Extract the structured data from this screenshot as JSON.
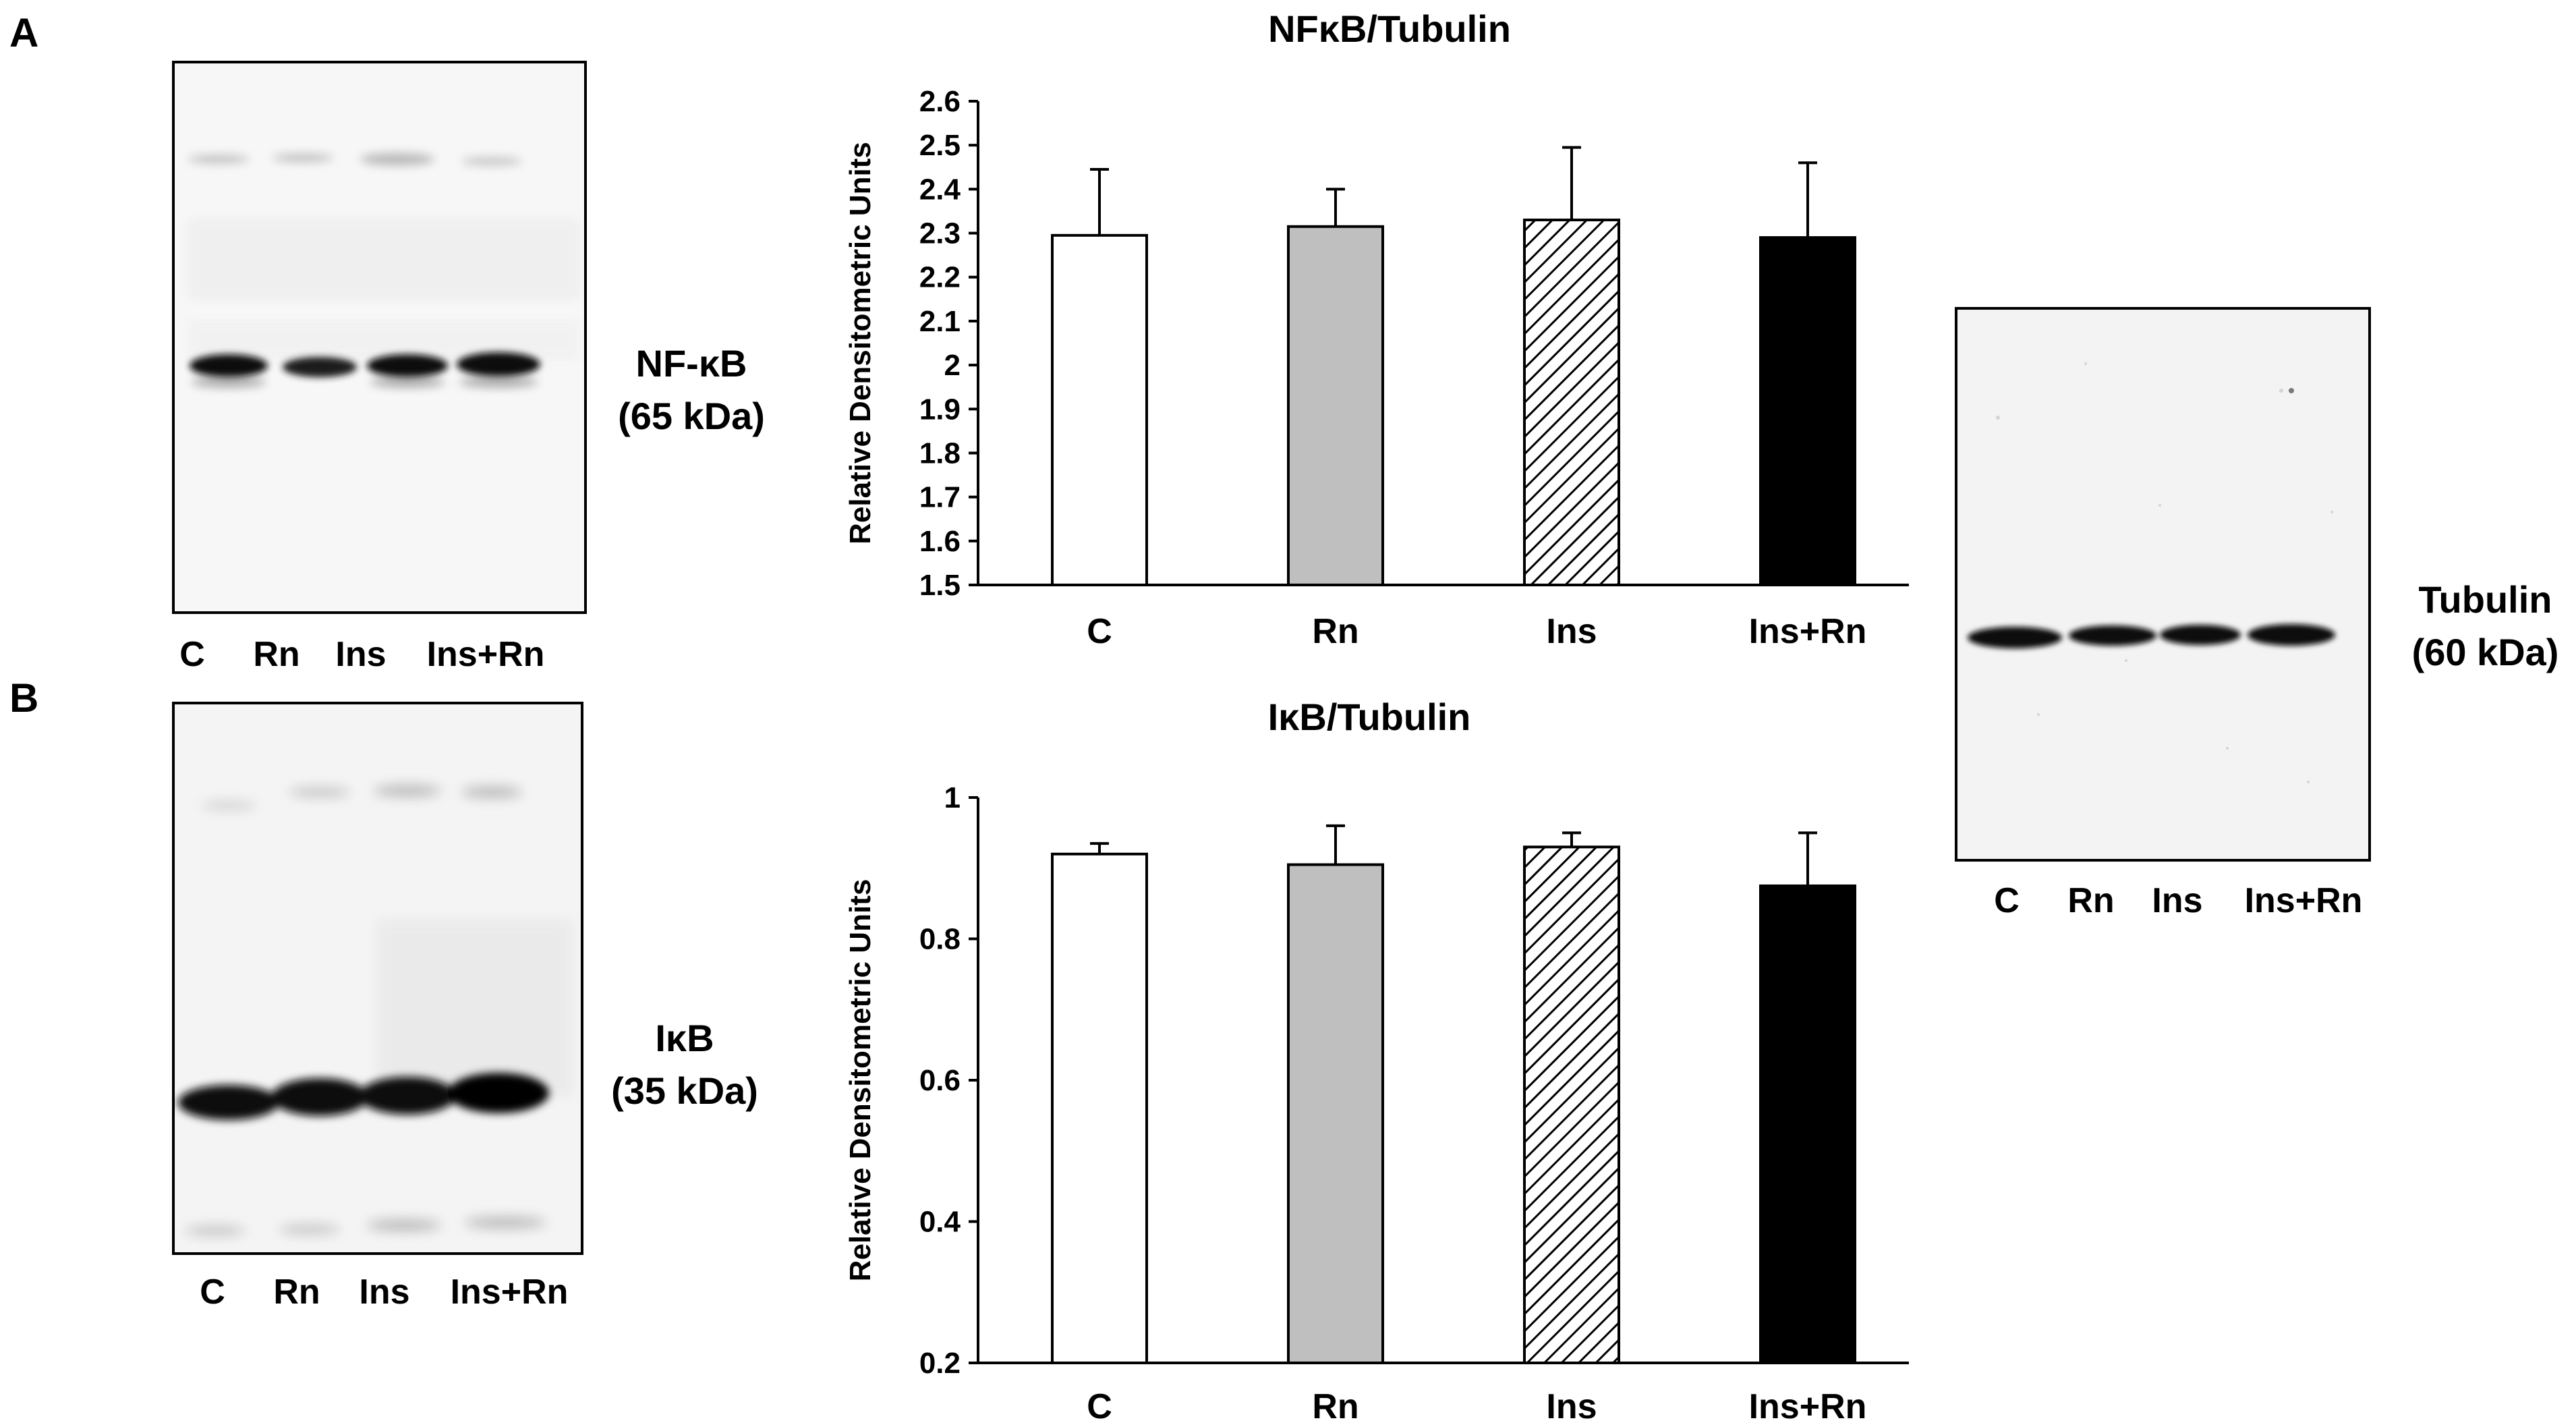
{
  "panels": {
    "a": "A",
    "b": "B"
  },
  "blots": {
    "nfkb": {
      "name": "NF-κB",
      "size": "(65 kDa)",
      "lanes": [
        "C",
        "Rn",
        "Ins",
        "Ins+Rn"
      ]
    },
    "ikb": {
      "name": "IκB",
      "size": "(35 kDa)",
      "lanes": [
        "C",
        "Rn",
        "Ins",
        "Ins+Rn"
      ]
    },
    "tubulin": {
      "name": "Tubulin",
      "size": "(60 kDa)",
      "lanes": [
        "C",
        "Rn",
        "Ins",
        "Ins+Rn"
      ]
    }
  },
  "chart_data": [
    {
      "type": "bar",
      "title": "NFκB/Tubulin",
      "xlabel": "",
      "ylabel": "Relative Densitometric Units",
      "categories": [
        "C",
        "Rn",
        "Ins",
        "Ins+Rn"
      ],
      "values": [
        2.295,
        2.315,
        2.33,
        2.29
      ],
      "errors": [
        0.15,
        0.085,
        0.165,
        0.17
      ],
      "ylim": [
        1.5,
        2.6
      ],
      "yticks": [
        "1.5",
        "1.6",
        "1.7",
        "1.8",
        "1.9",
        "2",
        "2.1",
        "2.2",
        "2.3",
        "2.4",
        "2.5",
        "2.6"
      ],
      "fills": [
        "white",
        "grey",
        "hatched",
        "black"
      ],
      "colors": [
        "#ffffff",
        "#bfbfbf",
        "#ffffff",
        "#000000"
      ]
    },
    {
      "type": "bar",
      "title": "IκB/Tubulin",
      "xlabel": "",
      "ylabel": "Relative Densitometric Units",
      "categories": [
        "C",
        "Rn",
        "Ins",
        "Ins+Rn"
      ],
      "values": [
        0.92,
        0.905,
        0.93,
        0.875
      ],
      "errors": [
        0.015,
        0.055,
        0.02,
        0.075
      ],
      "ylim": [
        0.2,
        1.0
      ],
      "yticks": [
        "0.2",
        "0.4",
        "0.6",
        "0.8",
        "1"
      ],
      "fills": [
        "white",
        "grey",
        "hatched",
        "black"
      ],
      "colors": [
        "#ffffff",
        "#bfbfbf",
        "#ffffff",
        "#000000"
      ]
    }
  ]
}
